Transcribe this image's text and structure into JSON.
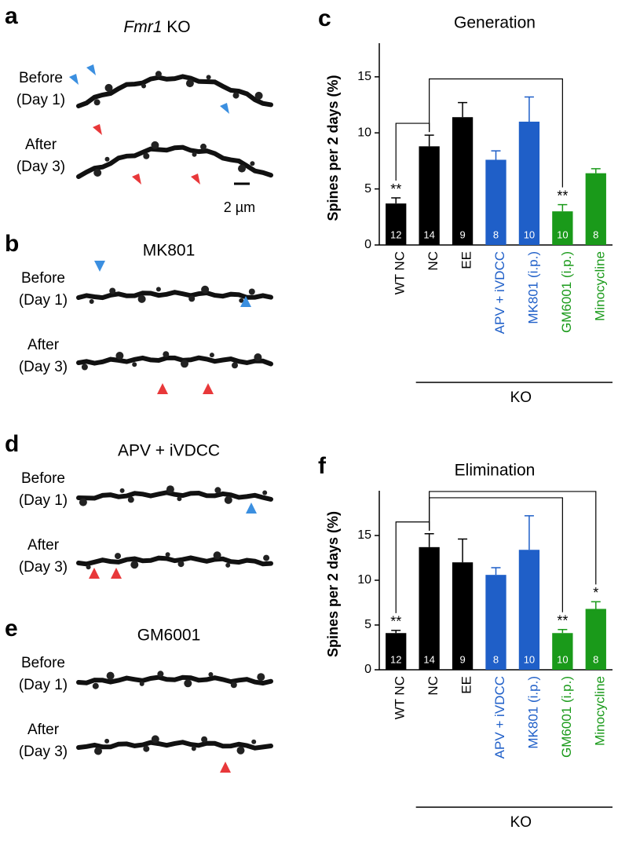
{
  "figure": {
    "panels": [
      {
        "letter": "a",
        "title_italic": "Fmr1",
        "title": "KO",
        "before": [
          "Before",
          "(Day 1)"
        ],
        "after": [
          "After",
          "(Day 3)"
        ],
        "scale_bar": "2 µm"
      },
      {
        "letter": "b",
        "title": "MK801",
        "before": [
          "Before",
          "(Day 1)"
        ],
        "after": [
          "After",
          "(Day 3)"
        ]
      },
      {
        "letter": "d",
        "title": "APV + iVDCC",
        "before": [
          "Before",
          "(Day 1)"
        ],
        "after": [
          "After",
          "(Day 3)"
        ]
      },
      {
        "letter": "e",
        "title": "GM6001",
        "before": [
          "Before",
          "(Day 1)"
        ],
        "after": [
          "After",
          "(Day 3)"
        ]
      }
    ]
  },
  "chart_data": [
    {
      "type": "bar",
      "panel": "c",
      "title": "Generation",
      "y_label": "Spines per 2 days (%)",
      "categories": [
        "WT NC",
        "NC",
        "EE",
        "APV + iVDCC",
        "MK801 (i.p.)",
        "GM6001 (i.p.)",
        "Minocycline"
      ],
      "values": [
        3.7,
        8.8,
        11.4,
        7.6,
        11.0,
        3.0,
        6.4
      ],
      "errors": [
        0.5,
        1.0,
        1.3,
        0.8,
        2.2,
        0.6,
        0.4
      ],
      "n": [
        12,
        14,
        9,
        8,
        10,
        10,
        8
      ],
      "significance": [
        "**",
        null,
        null,
        null,
        null,
        "**",
        null
      ],
      "colors": [
        "#000000",
        "#000000",
        "#000000",
        "#1f5fc8",
        "#1f5fc8",
        "#1a9a1a",
        "#1a9a1a"
      ],
      "group_label": "KO",
      "ylim": [
        0,
        18
      ],
      "yticks": [
        0,
        5,
        10,
        15
      ]
    },
    {
      "type": "bar",
      "panel": "f",
      "title": "Elimination",
      "y_label": "Spines per 2 days (%)",
      "categories": [
        "WT NC",
        "NC",
        "EE",
        "APV + iVDCC",
        "MK801 (i.p.)",
        "GM6001 (i.p.)",
        "Minocycline"
      ],
      "values": [
        4.1,
        13.7,
        12.0,
        10.6,
        13.4,
        4.1,
        6.8
      ],
      "errors": [
        0.3,
        1.5,
        2.6,
        0.8,
        3.8,
        0.4,
        0.8
      ],
      "n": [
        12,
        14,
        9,
        8,
        10,
        10,
        8
      ],
      "significance": [
        "**",
        null,
        null,
        null,
        null,
        "**",
        "*"
      ],
      "colors": [
        "#000000",
        "#000000",
        "#000000",
        "#1f5fc8",
        "#1f5fc8",
        "#1a9a1a",
        "#1a9a1a"
      ],
      "group_label": "KO",
      "ylim": [
        0,
        20
      ],
      "yticks": [
        0,
        5,
        10,
        15
      ]
    }
  ]
}
